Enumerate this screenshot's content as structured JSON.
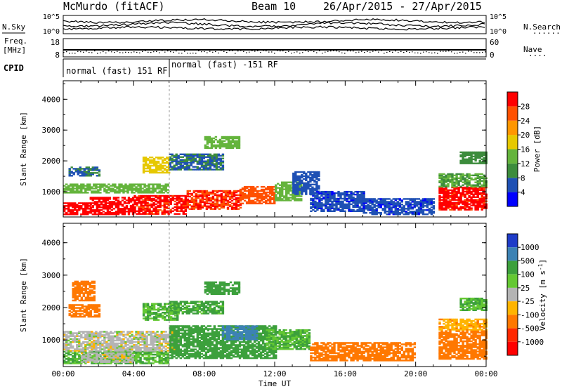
{
  "header": {
    "station": "McMurdo (fitACF)",
    "beam": "Beam 10",
    "dates": "26/Apr/2015 - 27/Apr/2015"
  },
  "strips": {
    "left_labels": {
      "nsky": "N.Sky",
      "freq": "Freq.",
      "freq_unit": "[MHz]",
      "cpid": "CPID"
    },
    "right_labels": {
      "nsearch": "N.Search",
      "nsearch_dots": "·······",
      "nave": "Nave",
      "nave_dots": "····"
    },
    "noise_ticks_left": [
      "10^5",
      "10^0"
    ],
    "noise_ticks_right": [
      "10^5",
      "10^0"
    ],
    "freq_ticks": [
      "18",
      "8"
    ],
    "nave_ticks": [
      "60",
      "0"
    ],
    "cpid_segments": [
      {
        "label": "normal (fast) 151 RF",
        "start_hour": 0,
        "end_hour": 6
      },
      {
        "label": "normal (fast) -151 RF",
        "start_hour": 6,
        "end_hour": 24
      }
    ]
  },
  "chart_data": [
    {
      "type": "heatmap",
      "name": "power",
      "ylabel": "Slant Range [km]",
      "colorbar_label": "Power [dB]",
      "x_unit": "hours UT",
      "xlim": [
        0,
        24
      ],
      "ylim": [
        180,
        4600
      ],
      "yticks": [
        "1000",
        "2000",
        "3000",
        "4000"
      ],
      "colorbar_ticks": [
        "4",
        "8",
        "12",
        "16",
        "20",
        "24",
        "28"
      ],
      "colorbar_colors": [
        "#0000ff",
        "#1e50b4",
        "#3c8c3c",
        "#64b43c",
        "#e6c800",
        "#ff9600",
        "#ff5000",
        "#ff0000"
      ],
      "colorbar_range": [
        0,
        32
      ],
      "regions": [
        {
          "t0": 0.0,
          "t1": 1.5,
          "r0": 250,
          "r1": 620,
          "v": 30
        },
        {
          "t0": 1.5,
          "t1": 4.0,
          "r0": 250,
          "r1": 820,
          "v": 30
        },
        {
          "t0": 4.0,
          "t1": 7.0,
          "r0": 260,
          "r1": 850,
          "v": 29
        },
        {
          "t0": 7.0,
          "t1": 10.0,
          "r0": 420,
          "r1": 1050,
          "v": 28
        },
        {
          "t0": 10.0,
          "t1": 12.0,
          "r0": 600,
          "r1": 1150,
          "v": 26
        },
        {
          "t0": 12.0,
          "t1": 13.5,
          "r0": 700,
          "r1": 1300,
          "v": 14
        },
        {
          "t0": 13.0,
          "t1": 14.5,
          "r0": 900,
          "r1": 1650,
          "v": 6
        },
        {
          "t0": 0.0,
          "t1": 6.0,
          "r0": 950,
          "r1": 1250,
          "v": 14
        },
        {
          "t0": 0.3,
          "t1": 2.0,
          "r0": 1500,
          "r1": 1800,
          "v": 8
        },
        {
          "t0": 4.5,
          "t1": 6.0,
          "r0": 1600,
          "r1": 2100,
          "v": 18
        },
        {
          "t0": 6.0,
          "t1": 9.0,
          "r0": 1700,
          "r1": 2200,
          "v": 8
        },
        {
          "t0": 8.0,
          "t1": 10.0,
          "r0": 2400,
          "r1": 2800,
          "v": 14
        },
        {
          "t0": 14.0,
          "t1": 17.0,
          "r0": 350,
          "r1": 1000,
          "v": 5
        },
        {
          "t0": 17.0,
          "t1": 21.0,
          "r0": 250,
          "r1": 750,
          "v": 5
        },
        {
          "t0": 21.3,
          "t1": 24.0,
          "r0": 400,
          "r1": 1150,
          "v": 29
        },
        {
          "t0": 21.3,
          "t1": 24.0,
          "r0": 1150,
          "r1": 1600,
          "v": 12
        },
        {
          "t0": 22.5,
          "t1": 24.0,
          "r0": 1900,
          "r1": 2300,
          "v": 10
        }
      ]
    },
    {
      "type": "heatmap",
      "name": "velocity",
      "ylabel": "Slant Range [km]",
      "colorbar_label": "Velocity [m s^-1]",
      "xlabel": "Time UT",
      "x_unit": "hours UT",
      "xlim": [
        0,
        24
      ],
      "ylim": [
        180,
        4600
      ],
      "xticks": [
        "00:00",
        "04:00",
        "08:00",
        "12:00",
        "16:00",
        "20:00",
        "00:00"
      ],
      "yticks": [
        "1000",
        "2000",
        "3000",
        "4000"
      ],
      "colorbar_ticks": [
        "1000",
        "500",
        "100",
        "25",
        "-25",
        "-100",
        "-500",
        "-1000"
      ],
      "colorbar_colors": [
        "#1e3cc8",
        "#3c82b4",
        "#3ca03c",
        "#64c832",
        "#b4b4b4",
        "#ffb400",
        "#ff7800",
        "#ff2800",
        "#ff0000"
      ],
      "regions": [
        {
          "t0": 0.0,
          "t1": 6.0,
          "r0": 260,
          "r1": 650,
          "v": 100
        },
        {
          "t0": 0.0,
          "t1": 6.5,
          "r0": 650,
          "r1": 1250,
          "v": 0
        },
        {
          "t0": 1.0,
          "t1": 4.0,
          "r0": 300,
          "r1": 600,
          "v": 0
        },
        {
          "t0": 6.0,
          "t1": 12.0,
          "r0": 420,
          "r1": 1450,
          "v": 150
        },
        {
          "t0": 9.0,
          "t1": 11.0,
          "r0": 1000,
          "r1": 1450,
          "v": 600
        },
        {
          "t0": 11.5,
          "t1": 14.0,
          "r0": 700,
          "r1": 1300,
          "v": 100
        },
        {
          "t0": 14.0,
          "t1": 20.0,
          "r0": 350,
          "r1": 900,
          "v": -150
        },
        {
          "t0": 0.3,
          "t1": 2.0,
          "r0": 1700,
          "r1": 2100,
          "v": -200
        },
        {
          "t0": 4.5,
          "t1": 6.5,
          "r0": 1600,
          "r1": 2100,
          "v": 100
        },
        {
          "t0": 6.0,
          "t1": 9.0,
          "r0": 1800,
          "r1": 2200,
          "v": 120
        },
        {
          "t0": 8.0,
          "t1": 10.0,
          "r0": 2400,
          "r1": 2800,
          "v": 150
        },
        {
          "t0": 0.5,
          "t1": 1.8,
          "r0": 2200,
          "r1": 2800,
          "v": -300
        },
        {
          "t0": 21.3,
          "t1": 24.0,
          "r0": 400,
          "r1": 1300,
          "v": -300
        },
        {
          "t0": 21.3,
          "t1": 24.0,
          "r0": 1300,
          "r1": 1650,
          "v": -80
        },
        {
          "t0": 22.5,
          "t1": 24.0,
          "r0": 1900,
          "r1": 2300,
          "v": 100
        }
      ]
    }
  ]
}
